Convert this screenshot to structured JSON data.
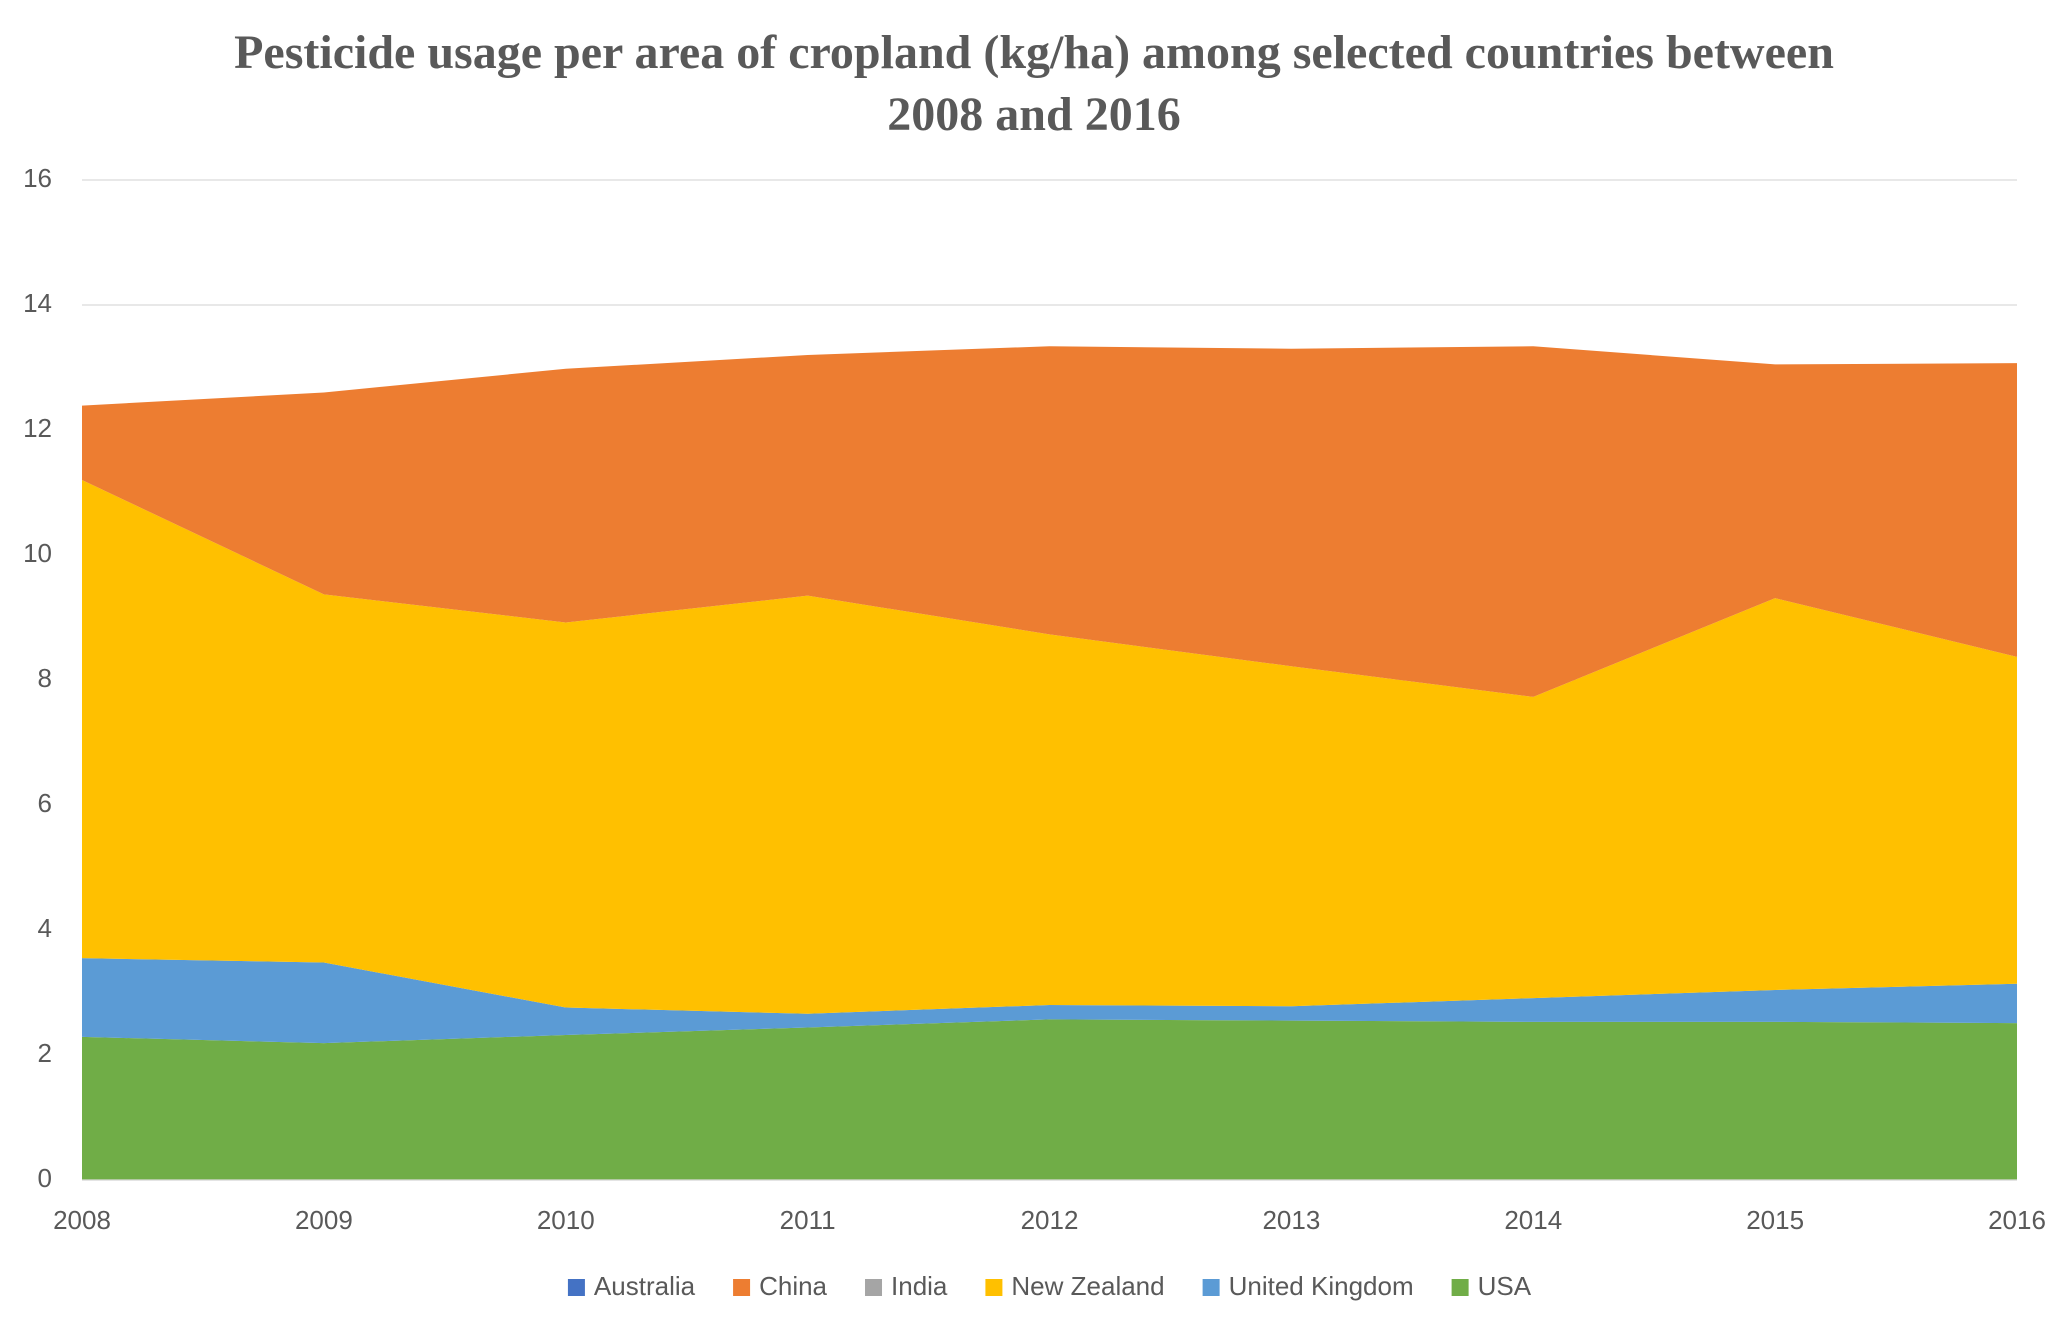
{
  "chart_data": {
    "type": "stacked-area",
    "title": "Pesticide usage per area of cropland (kg/ha) among selected countries between 2008 and 2016",
    "categories": [
      "2008",
      "2009",
      "2010",
      "2011",
      "2012",
      "2013",
      "2014",
      "2015",
      "2016"
    ],
    "series": [
      {
        "name": "Australia",
        "color": "#4472c4",
        "values": [
          0,
          0,
          0,
          0,
          0,
          0,
          0,
          0,
          0
        ]
      },
      {
        "name": "China",
        "color": "#ed7d31",
        "values": [
          1.19,
          3.23,
          4.06,
          3.85,
          4.61,
          5.08,
          5.61,
          3.74,
          4.7
        ]
      },
      {
        "name": "India",
        "color": "#a5a5a5",
        "values": [
          0,
          0,
          0,
          0,
          0,
          0,
          0,
          0,
          0
        ]
      },
      {
        "name": "New Zealand",
        "color": "#ffc000",
        "values": [
          7.65,
          5.89,
          6.16,
          6.69,
          5.93,
          5.44,
          4.82,
          6.27,
          5.23
        ]
      },
      {
        "name": "United Kingdom",
        "color": "#5b9bd5",
        "values": [
          1.26,
          1.29,
          0.44,
          0.22,
          0.23,
          0.23,
          0.38,
          0.51,
          0.63
        ]
      },
      {
        "name": "USA",
        "color": "#70ad47",
        "values": [
          2.29,
          2.19,
          2.32,
          2.44,
          2.57,
          2.55,
          2.53,
          2.53,
          2.51
        ]
      }
    ],
    "ylim": [
      0,
      16
    ],
    "yticks": [
      0,
      2,
      4,
      6,
      8,
      10,
      12,
      14,
      16
    ],
    "grid": true,
    "legend": "bottom"
  }
}
